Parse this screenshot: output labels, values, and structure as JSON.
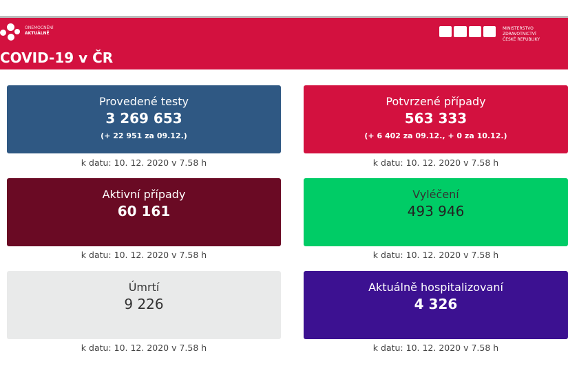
{
  "header": {
    "brand_line1": "ONEMOCNĚNÍ",
    "brand_line2": "AKTUÁLNĚ",
    "title": "COVID-19 v ČR",
    "ministry_line1": "MINISTERSTVO ZDRAVOTNICTVÍ",
    "ministry_line2": "ČESKÉ REPUBLIKY"
  },
  "colors": {
    "header": "#d3113f",
    "tests": "#2f5883",
    "confirmed": "#d3113f",
    "active": "#6a0a24",
    "recovered": "#00cc66",
    "deaths": "#e9eaea",
    "hospitalized": "#3c1191"
  },
  "cards": [
    {
      "label": "Provedené testy",
      "value": "3 269 653",
      "sub": "(+ 22 951 za 09.12.)",
      "caption": "k datu: 10. 12. 2020 v 7.58 h"
    },
    {
      "label": "Potvrzené případy",
      "value": "563 333",
      "sub": "(+ 6 402 za 09.12., + 0 za 10.12.)",
      "caption": "k datu: 10. 12. 2020 v 7.58 h"
    },
    {
      "label": "Aktivní případy",
      "value": "60 161",
      "caption": "k datu: 10. 12. 2020 v 7.58 h"
    },
    {
      "label": "Vyléčení",
      "value": "493 946",
      "caption": "k datu: 10. 12. 2020 v 7.58 h"
    },
    {
      "label": "Úmrtí",
      "value": "9 226",
      "caption": "k datu: 10. 12. 2020 v 7.58 h"
    },
    {
      "label": "Aktuálně hospitalizovaní",
      "value": "4 326",
      "caption": "k datu: 10. 12. 2020 v 7.58 h"
    }
  ]
}
